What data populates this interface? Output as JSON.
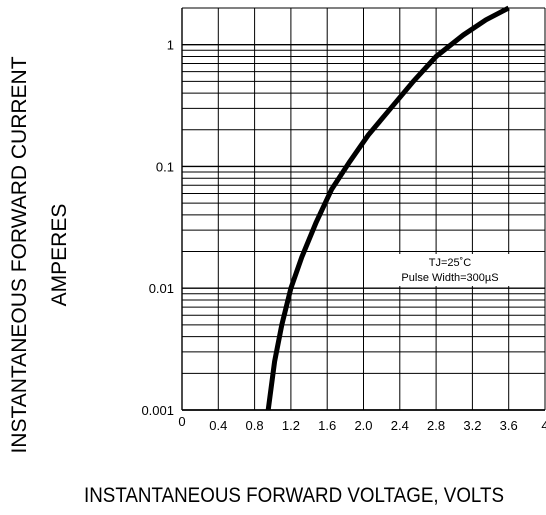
{
  "chart_data": {
    "type": "line",
    "ylabel_line1": "INSTANTANEOUS FORWARD CURRENT",
    "ylabel_line2": "AMPERES",
    "xlabel": "INSTANTANEOUS FORWARD VOLTAGE,  VOLTS",
    "x_scale": "linear",
    "y_scale": "log",
    "xlim": [
      0,
      4
    ],
    "ylim": [
      0.001,
      2
    ],
    "x_ticks": [
      "0",
      "0.4",
      "0.8",
      "1.2",
      "1.6",
      "2.0",
      "2.4",
      "2.8",
      "3.2",
      "3.6",
      "4"
    ],
    "y_ticks": [
      "1",
      "0.1",
      "0.01",
      "0.001"
    ],
    "annotation_line1": "TJ=25˚C",
    "annotation_line2": "Pulse Width=300µS",
    "grid": true,
    "series": [
      {
        "x": [
          0.95,
          1.02,
          1.1,
          1.2,
          1.32,
          1.48,
          1.65,
          1.85,
          2.05,
          2.3,
          2.55,
          2.8,
          3.1,
          3.35,
          3.6
        ],
        "y": [
          0.001,
          0.0025,
          0.005,
          0.01,
          0.018,
          0.035,
          0.065,
          0.11,
          0.18,
          0.3,
          0.5,
          0.8,
          1.2,
          1.6,
          2.0
        ]
      }
    ]
  }
}
